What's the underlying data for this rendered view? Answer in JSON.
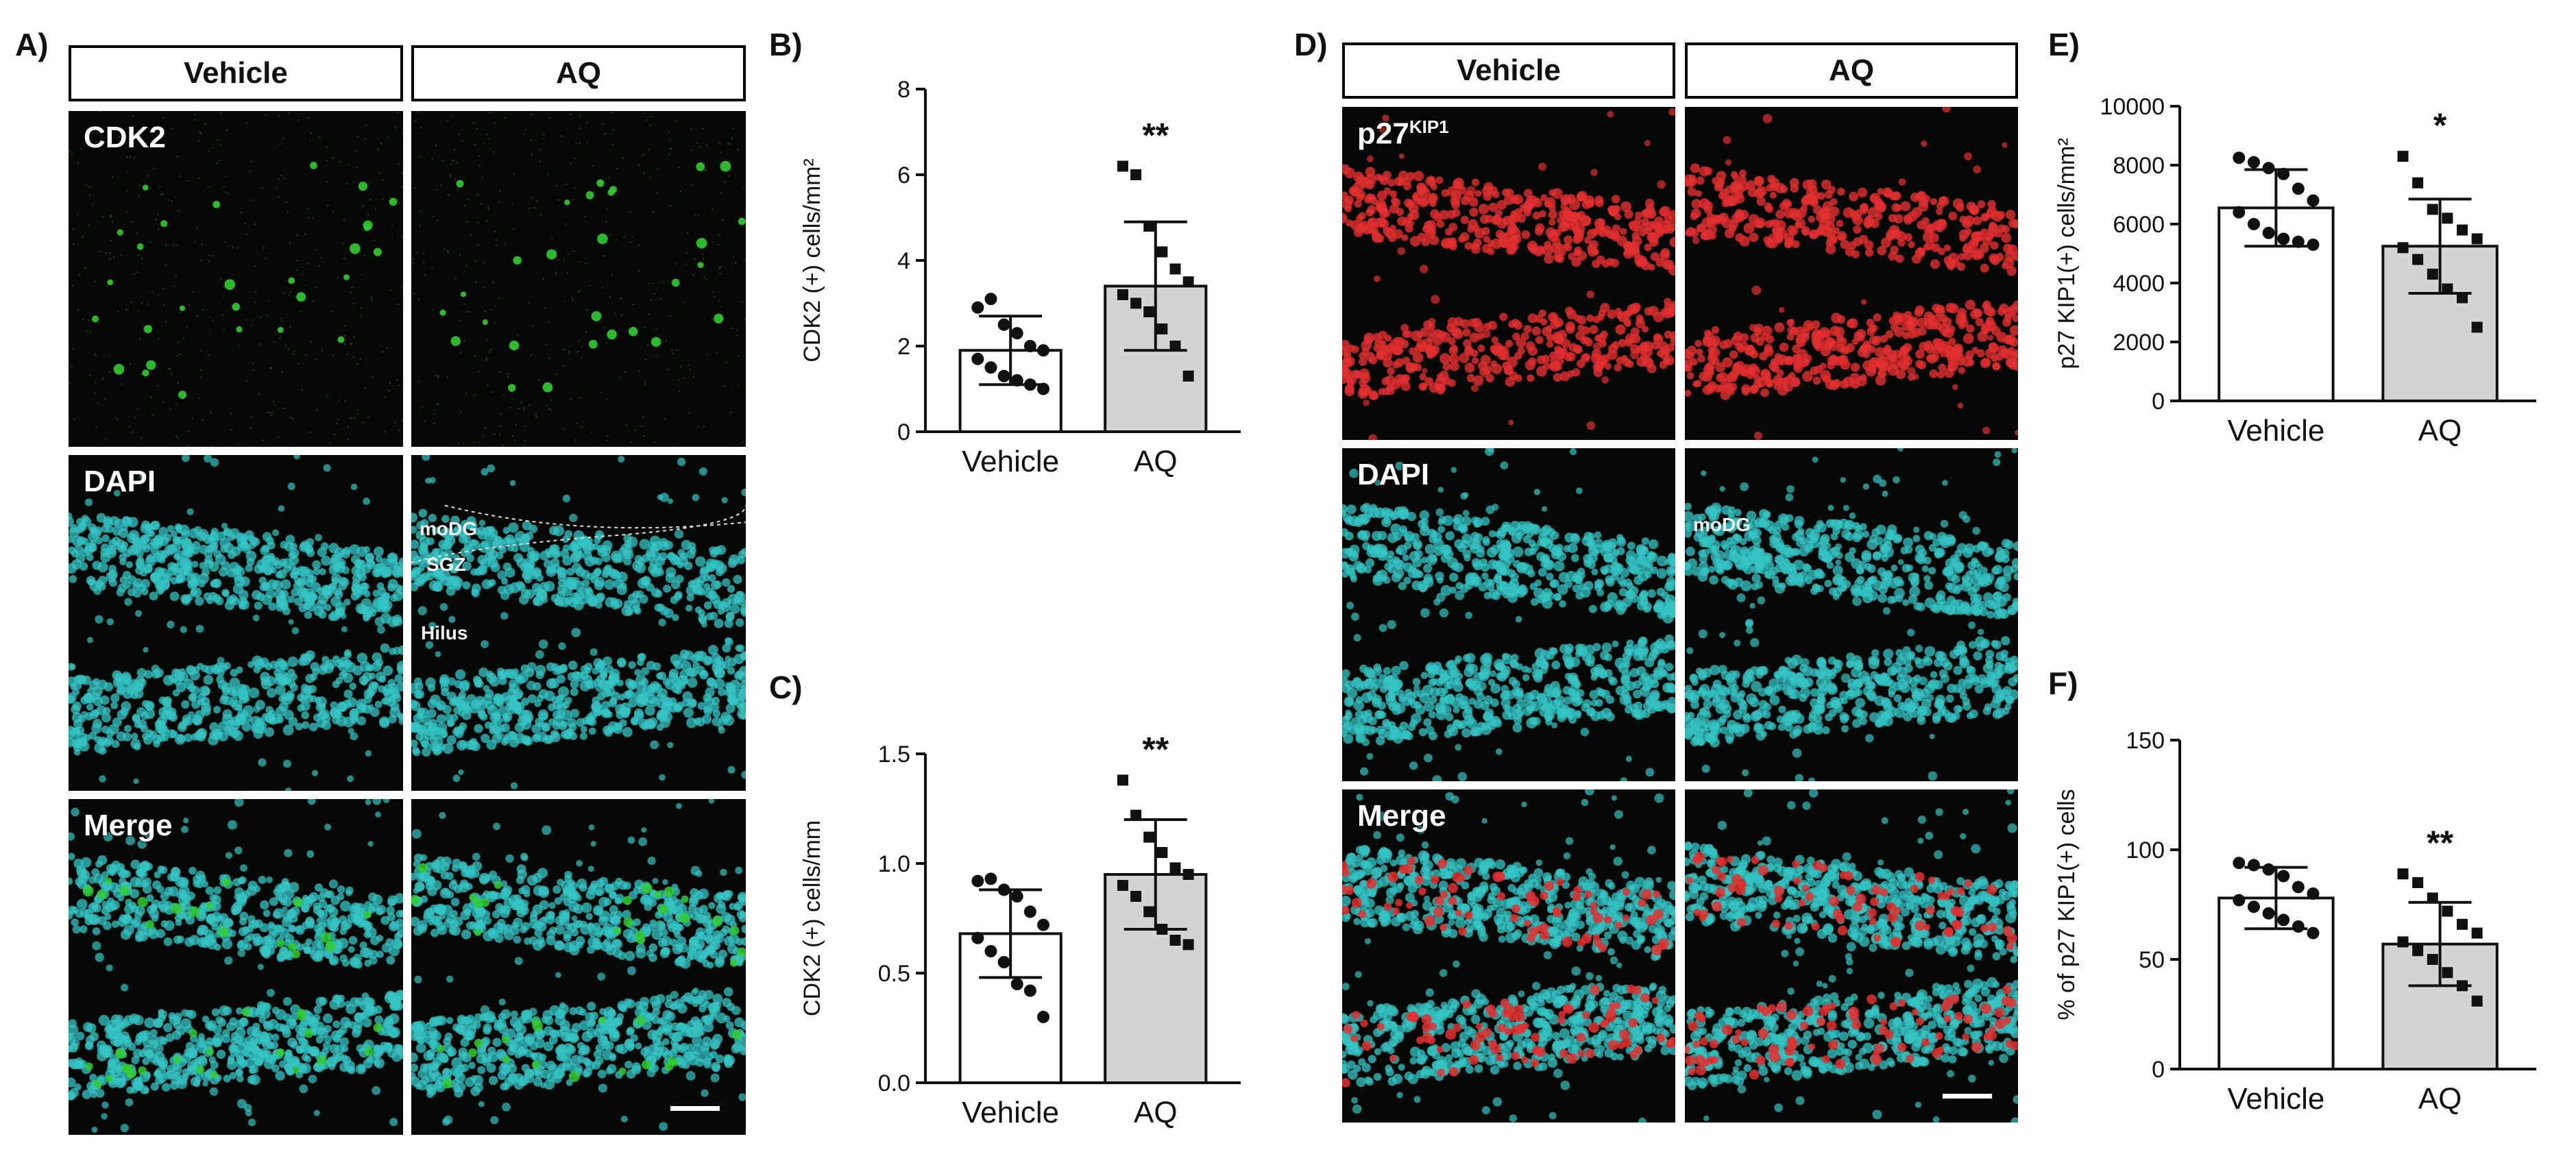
{
  "figure": {
    "panel_labels": {
      "a": "A)",
      "b": "B)",
      "c": "C)",
      "d": "D)",
      "e": "E)",
      "f": "F)"
    },
    "micrograph_a": {
      "col_headers": [
        "Vehicle",
        "AQ"
      ],
      "row_labels": [
        "CDK2",
        "DAPI",
        "Merge"
      ],
      "annotations": {
        "modg": "moDG",
        "sgz": "SGZ",
        "hilus": "Hilus"
      },
      "colors": {
        "marker": "#33cc33",
        "dapi": "#36c4c4"
      }
    },
    "micrograph_d": {
      "col_headers": [
        "Vehicle",
        "AQ"
      ],
      "row_label_main": "p27",
      "row_label_sup": "KIP1",
      "row_labels": [
        "DAPI",
        "Merge"
      ],
      "annotations": {
        "modg": "moDG"
      },
      "colors": {
        "marker": "#e23030",
        "dapi": "#36c4c4"
      }
    }
  },
  "chart_data": [
    {
      "id": "B",
      "type": "bar",
      "ylabel": "CDK2 (+) cells/mm²",
      "ylim": [
        0,
        8
      ],
      "yticks": [
        0,
        2,
        4,
        6,
        8
      ],
      "ytick_labels": [
        "0",
        "2",
        "4",
        "6",
        "8"
      ],
      "categories": [
        "Vehicle",
        "AQ"
      ],
      "values": [
        1.9,
        3.4
      ],
      "errors": [
        0.8,
        1.5
      ],
      "significance": [
        "",
        "**"
      ],
      "points": [
        [
          2.9,
          3.1,
          2.5,
          2.3,
          2.0,
          1.9,
          1.7,
          1.5,
          1.3,
          1.2,
          1.1,
          1.0
        ],
        [
          6.2,
          6.0,
          4.8,
          4.2,
          3.8,
          3.5,
          3.2,
          3.0,
          2.8,
          2.4,
          2.0,
          1.3
        ]
      ],
      "colors": {
        "vehicle": "#ffffff",
        "aq": "#d4d4d4"
      }
    },
    {
      "id": "C",
      "type": "bar",
      "ylabel": "CDK2 (+) cells/mm",
      "ylim": [
        0,
        1.5
      ],
      "yticks": [
        0,
        0.5,
        1.0,
        1.5
      ],
      "ytick_labels": [
        "0.0",
        "0.5",
        "1.0",
        "1.5"
      ],
      "categories": [
        "Vehicle",
        "AQ"
      ],
      "values": [
        0.68,
        0.95
      ],
      "errors": [
        0.2,
        0.25
      ],
      "significance": [
        "",
        "**"
      ],
      "points": [
        [
          0.92,
          0.93,
          0.88,
          0.85,
          0.78,
          0.72,
          0.66,
          0.6,
          0.55,
          0.45,
          0.42,
          0.3
        ],
        [
          1.38,
          1.22,
          1.12,
          1.05,
          0.98,
          0.95,
          0.9,
          0.85,
          0.78,
          0.7,
          0.65,
          0.63
        ]
      ],
      "colors": {
        "vehicle": "#ffffff",
        "aq": "#d4d4d4"
      }
    },
    {
      "id": "E",
      "type": "bar",
      "ylabel": "p27 KIP1(+) cells/mm²",
      "ylim": [
        0,
        10000
      ],
      "yticks": [
        0,
        2000,
        4000,
        6000,
        8000,
        10000
      ],
      "ytick_labels": [
        "0",
        "2000",
        "4000",
        "6000",
        "8000",
        "10000"
      ],
      "categories": [
        "Vehicle",
        "AQ"
      ],
      "values": [
        6550,
        5250
      ],
      "errors": [
        1300,
        1600
      ],
      "significance": [
        "",
        "*"
      ],
      "points": [
        [
          8250,
          8100,
          7900,
          7700,
          7200,
          6800,
          6400,
          6000,
          5700,
          5500,
          5400,
          5300
        ],
        [
          8300,
          7400,
          6500,
          6200,
          5800,
          5500,
          5200,
          4800,
          4300,
          3800,
          3500,
          2500
        ]
      ],
      "colors": {
        "vehicle": "#ffffff",
        "aq": "#d4d4d4"
      }
    },
    {
      "id": "F",
      "type": "bar",
      "ylabel": "% of p27 KIP1(+) cells",
      "ylim": [
        0,
        150
      ],
      "yticks": [
        0,
        50,
        100,
        150
      ],
      "ytick_labels": [
        "0",
        "50",
        "100",
        "150"
      ],
      "categories": [
        "Vehicle",
        "AQ"
      ],
      "values": [
        78,
        57
      ],
      "errors": [
        14,
        19
      ],
      "significance": [
        "",
        "**"
      ],
      "points": [
        [
          94,
          93,
          91,
          88,
          83,
          80,
          77,
          74,
          71,
          68,
          65,
          62
        ],
        [
          89,
          85,
          78,
          72,
          66,
          62,
          58,
          54,
          50,
          44,
          38,
          31
        ]
      ],
      "colors": {
        "vehicle": "#ffffff",
        "aq": "#d4d4d4"
      }
    }
  ]
}
